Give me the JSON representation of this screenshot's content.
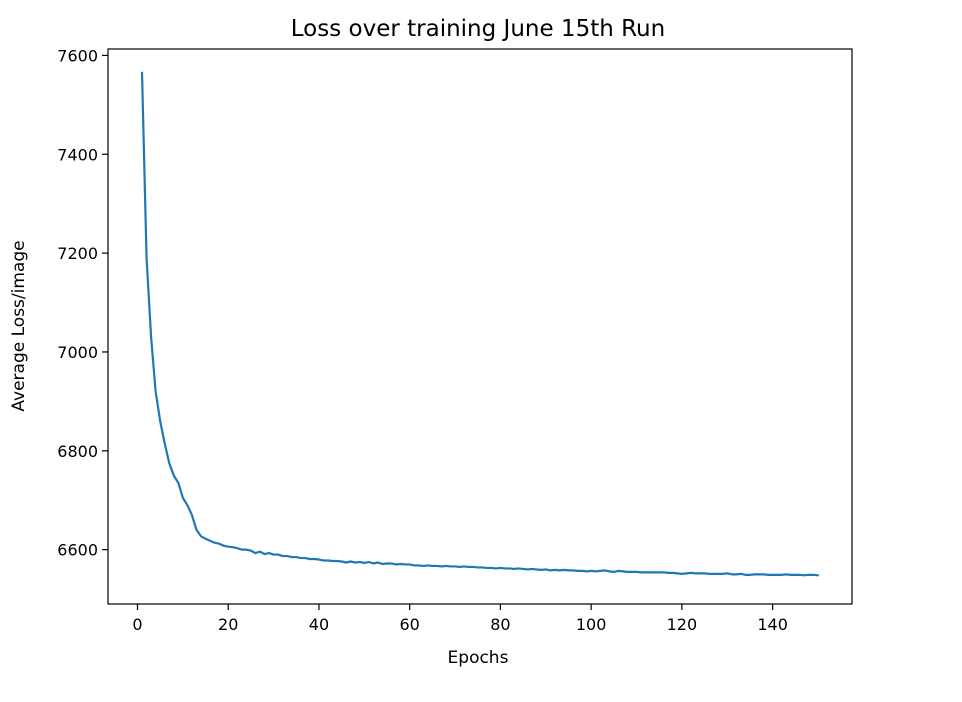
{
  "chart_data": {
    "type": "line",
    "title": "Loss over training June 15th Run",
    "xlabel": "Epochs",
    "ylabel": "Average Loss/image",
    "xlim": [
      -6.5,
      157.5
    ],
    "ylim": [
      6490,
      7613
    ],
    "xticks": [
      0,
      20,
      40,
      60,
      80,
      100,
      120,
      140
    ],
    "yticks": [
      6600,
      6800,
      7000,
      7200,
      7400,
      7600
    ],
    "grid": false,
    "series": [
      {
        "color": "#1f77b4",
        "x": [
          1,
          2,
          3,
          4,
          5,
          6,
          7,
          8,
          9,
          10,
          11,
          12,
          13,
          14,
          15,
          16,
          17,
          18,
          19,
          20,
          21,
          22,
          23,
          24,
          25,
          26,
          27,
          28,
          29,
          30,
          31,
          32,
          33,
          34,
          35,
          36,
          37,
          38,
          39,
          40,
          41,
          42,
          43,
          44,
          45,
          46,
          47,
          48,
          49,
          50,
          51,
          52,
          53,
          54,
          55,
          56,
          57,
          58,
          59,
          60,
          61,
          62,
          63,
          64,
          65,
          66,
          67,
          68,
          69,
          70,
          71,
          72,
          73,
          74,
          75,
          76,
          77,
          78,
          79,
          80,
          81,
          82,
          83,
          84,
          85,
          86,
          87,
          88,
          89,
          90,
          91,
          92,
          93,
          94,
          95,
          96,
          97,
          98,
          99,
          100,
          101,
          102,
          103,
          104,
          105,
          106,
          107,
          108,
          109,
          110,
          111,
          112,
          113,
          114,
          115,
          116,
          117,
          118,
          119,
          120,
          121,
          122,
          123,
          124,
          125,
          126,
          127,
          128,
          129,
          130,
          131,
          132,
          133,
          134,
          135,
          136,
          137,
          138,
          139,
          140,
          141,
          142,
          143,
          144,
          145,
          146,
          147,
          148,
          149,
          150
        ],
        "y": [
          7565,
          7190,
          7030,
          6920,
          6860,
          6815,
          6775,
          6750,
          6735,
          6705,
          6690,
          6670,
          6640,
          6627,
          6622,
          6618,
          6614,
          6612,
          6608,
          6606,
          6605,
          6603,
          6600,
          6600,
          6598,
          6593,
          6596,
          6591,
          6593,
          6590,
          6590,
          6587,
          6587,
          6585,
          6585,
          6583,
          6583,
          6581,
          6581,
          6580,
          6578,
          6578,
          6577,
          6577,
          6576,
          6574,
          6576,
          6574,
          6575,
          6573,
          6575,
          6572,
          6574,
          6571,
          6572,
          6572,
          6570,
          6571,
          6570,
          6570,
          6568,
          6568,
          6567,
          6568,
          6567,
          6567,
          6566,
          6567,
          6566,
          6566,
          6565,
          6566,
          6565,
          6565,
          6564,
          6564,
          6563,
          6563,
          6562,
          6563,
          6562,
          6562,
          6561,
          6562,
          6561,
          6560,
          6561,
          6560,
          6559,
          6560,
          6558,
          6559,
          6558,
          6559,
          6558,
          6558,
          6557,
          6557,
          6556,
          6557,
          6556,
          6557,
          6558,
          6556,
          6555,
          6557,
          6556,
          6555,
          6555,
          6555,
          6554,
          6554,
          6554,
          6554,
          6554,
          6554,
          6553,
          6553,
          6552,
          6551,
          6552,
          6553,
          6552,
          6552,
          6552,
          6551,
          6551,
          6551,
          6551,
          6552,
          6550,
          6550,
          6551,
          6549,
          6549,
          6550,
          6550,
          6550,
          6549,
          6549,
          6549,
          6549,
          6550,
          6549,
          6549,
          6549,
          6548,
          6549,
          6549,
          6548
        ]
      }
    ]
  }
}
